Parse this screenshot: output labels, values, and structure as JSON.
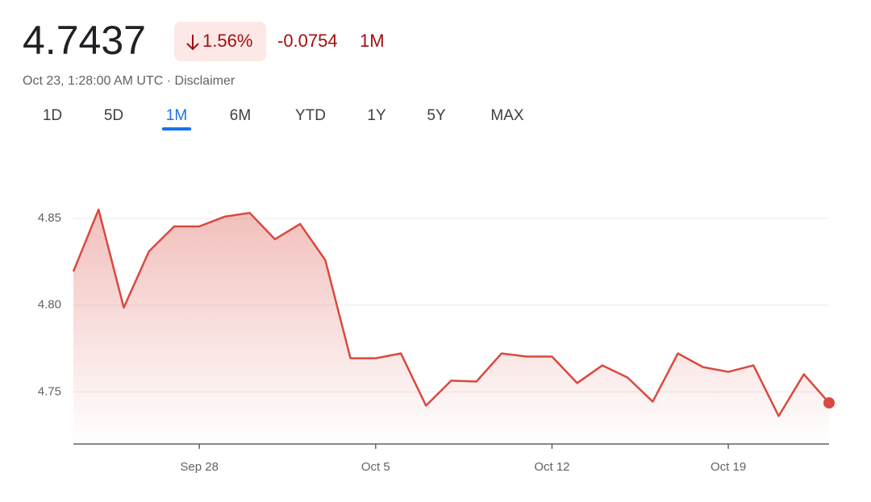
{
  "header": {
    "price": "4.7437",
    "change_percent": "1.56%",
    "change": "-0.0754",
    "period": "1M",
    "timestamp": "Oct 23, 1:28:00 AM UTC",
    "disclaimer": "Disclaimer",
    "tabs": [
      "1D",
      "5D",
      "1M",
      "6M",
      "YTD",
      "1Y",
      "5Y",
      "MAX"
    ],
    "active_tab": 2
  },
  "chart_data": {
    "type": "line",
    "color": "#d9493f",
    "x": [
      "Sep 23",
      "Sep 24",
      "Sep 25",
      "Sep 26",
      "Sep 27",
      "Sep 28",
      "Sep 29",
      "Sep 30",
      "Oct 1",
      "Oct 2",
      "Oct 3",
      "Oct 4",
      "Oct 5",
      "Oct 6",
      "Oct 7",
      "Oct 8",
      "Oct 9",
      "Oct 10",
      "Oct 11",
      "Oct 12",
      "Oct 13",
      "Oct 14",
      "Oct 15",
      "Oct 16",
      "Oct 17",
      "Oct 18",
      "Oct 19",
      "Oct 20",
      "Oct 21",
      "Oct 22",
      "Oct 23"
    ],
    "values": [
      4.8194,
      4.8551,
      4.7986,
      4.831,
      4.8454,
      4.8454,
      4.851,
      4.8532,
      4.838,
      4.8468,
      4.826,
      4.7694,
      4.7694,
      4.7722,
      4.7421,
      4.7565,
      4.756,
      4.7722,
      4.7704,
      4.7704,
      4.7551,
      4.7653,
      4.7583,
      4.7444,
      4.7722,
      4.7643,
      4.7616,
      4.7653,
      4.7361,
      4.7602,
      4.7437
    ],
    "xlim": [
      "Sep 23",
      "Oct 23"
    ],
    "xticks": [
      "Sep 28",
      "Oct 5",
      "Oct 12",
      "Oct 19"
    ],
    "ylim": [
      4.72,
      4.87
    ],
    "yticks": [
      {
        "value": 4.75,
        "label": "4.75"
      },
      {
        "value": 4.8,
        "label": "4.80"
      },
      {
        "value": 4.85,
        "label": "4.85"
      }
    ],
    "grid": true
  }
}
